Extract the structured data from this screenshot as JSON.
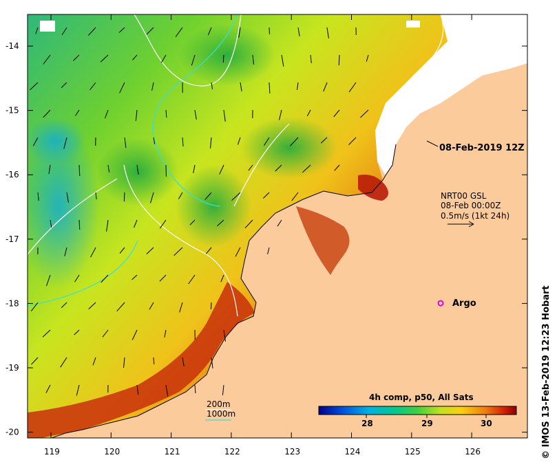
{
  "map": {
    "x_ticks": [
      "119",
      "120",
      "121",
      "122",
      "123",
      "124",
      "125",
      "126"
    ],
    "y_ticks": [
      "-14",
      "-15",
      "-16",
      "-17",
      "-18",
      "-19",
      "-20"
    ],
    "time_label": "08-Feb-2019 12Z",
    "current_info": {
      "line1": "NRT00 GSL",
      "line2": "08-Feb 00:00Z",
      "line3": "0.5m/s (1kt 24h)"
    },
    "argo_label": "Argo",
    "depth_legend": {
      "shallow": "200m",
      "deep": "1000m"
    },
    "colorbar": {
      "title": "4h comp, p50, All Sats",
      "ticks": [
        "28",
        "29",
        "30"
      ]
    },
    "credit": "© IMOS 13-Feb-2019 12:23 Hobart",
    "colors": {
      "land": "#fbcb9b",
      "cloud": "#ffffff",
      "argo": "#e000e0",
      "isobath_200": "#30e0e0",
      "isobath_1000": "#ffffff"
    }
  }
}
